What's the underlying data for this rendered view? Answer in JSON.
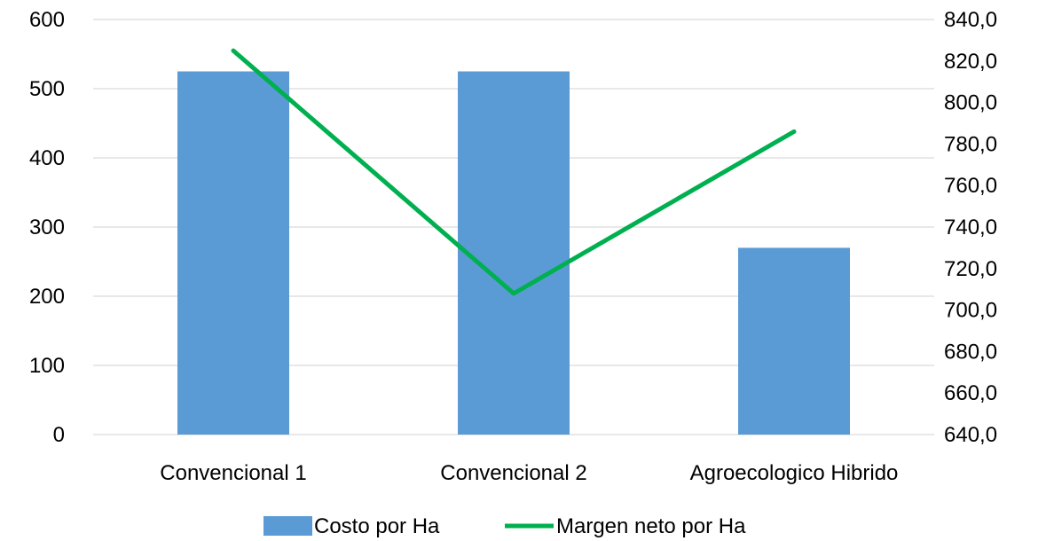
{
  "chart_data": {
    "type": "bar",
    "categories": [
      "Convencional 1",
      "Convencional 2",
      "Agroecologico Hibrido"
    ],
    "series": [
      {
        "name": "Costo por Ha",
        "type": "bar",
        "axis": "left",
        "values": [
          525,
          525,
          270
        ],
        "color": "#5B9BD5"
      },
      {
        "name": "Margen neto por Ha",
        "type": "line",
        "axis": "right",
        "values": [
          825.0,
          708.0,
          786.0
        ],
        "color": "#00B050"
      }
    ],
    "y_left": {
      "ylim": [
        0,
        600
      ],
      "ticks": [
        "0",
        "100",
        "200",
        "300",
        "400",
        "500",
        "600"
      ]
    },
    "y_right": {
      "ylim": [
        640,
        840
      ],
      "ticks": [
        "640,0",
        "660,0",
        "680,0",
        "700,0",
        "720,0",
        "740,0",
        "760,0",
        "780,0",
        "800,0",
        "820,0",
        "840,0"
      ]
    },
    "grid": true,
    "legend_position": "bottom",
    "title": "",
    "xlabel": "",
    "ylabel": ""
  }
}
